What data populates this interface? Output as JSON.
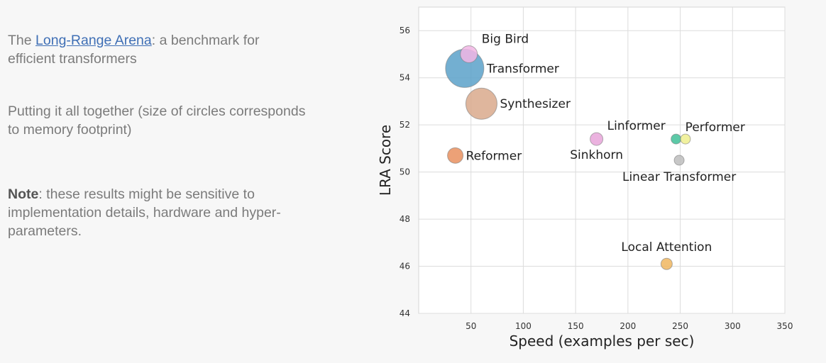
{
  "intro": {
    "prefix": "The ",
    "link_text": "Long-Range Arena",
    "suffix": ": a benchmark for efficient transformers"
  },
  "together_text": "Putting it all together (size of circles corresponds to memory footprint)",
  "note": {
    "label": "Note",
    "text": ": these results might be sensitive to implementation details, hardware and hyper-parameters."
  },
  "chart_data": {
    "type": "scatter",
    "xlabel": "Speed (examples per sec)",
    "ylabel": "LRA Score",
    "xlim": [
      0,
      350
    ],
    "ylim": [
      44,
      57
    ],
    "xticks": [
      50,
      100,
      150,
      200,
      250,
      300,
      350
    ],
    "yticks": [
      44,
      46,
      48,
      50,
      52,
      54,
      56
    ],
    "grid": true,
    "points": [
      {
        "name": "Big Bird",
        "x": 48,
        "y": 55.0,
        "size": 12,
        "color": "#f2b6e5",
        "label_pos": "upper-right"
      },
      {
        "name": "Transformer",
        "x": 44,
        "y": 54.4,
        "size": 27,
        "color": "#5aa1c9",
        "label_pos": "right"
      },
      {
        "name": "Synthesizer",
        "x": 60,
        "y": 52.9,
        "size": 22,
        "color": "#d9a98c",
        "label_pos": "right"
      },
      {
        "name": "Reformer",
        "x": 35,
        "y": 50.7,
        "size": 11,
        "color": "#e9905f",
        "label_pos": "right"
      },
      {
        "name": "Linformer",
        "x": 170,
        "y": 51.4,
        "size": 9,
        "color": "#e8a4d9",
        "label_pos": "upper-right"
      },
      {
        "name": "Sinkhorn",
        "x": 170,
        "y": 51.4,
        "size": 0,
        "color": "#e8a4d9",
        "label_pos": "below"
      },
      {
        "name": "Performer",
        "x": 246,
        "y": 51.4,
        "size": 7,
        "color": "#3fbf98",
        "label_pos": "upper-right"
      },
      {
        "name": "",
        "x": 255,
        "y": 51.4,
        "size": 7,
        "color": "#eeee8e",
        "label_pos": "none"
      },
      {
        "name": "Linear Transformer",
        "x": 249,
        "y": 50.5,
        "size": 7,
        "color": "#bdbdbd",
        "label_pos": "below"
      },
      {
        "name": "Local Attention",
        "x": 237,
        "y": 46.1,
        "size": 8,
        "color": "#f0b65f",
        "label_pos": "above"
      }
    ]
  }
}
